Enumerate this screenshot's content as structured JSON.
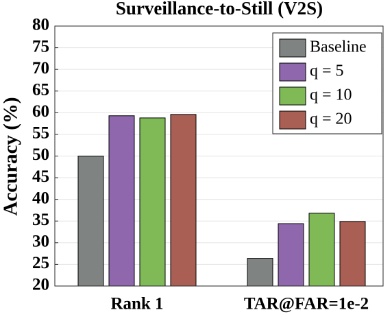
{
  "chart_data": {
    "type": "bar",
    "title": "Surveillance-to-Still (V2S)",
    "y_label": "Accuracy (%)",
    "categories": [
      "Rank 1",
      "TAR@FAR=1e-2"
    ],
    "series": [
      {
        "name": "Baseline",
        "color": "#7f8483",
        "values": [
          50,
          26.4
        ]
      },
      {
        "name": "q = 5",
        "color": "#8e67ad",
        "values": [
          59.3,
          34.4
        ]
      },
      {
        "name": "q = 10",
        "color": "#7fba56",
        "values": [
          58.8,
          36.8
        ]
      },
      {
        "name": "q = 20",
        "color": "#a95f53",
        "values": [
          59.6,
          34.9
        ]
      }
    ],
    "ylim": [
      20,
      80
    ],
    "yticks": [
      20,
      25,
      30,
      35,
      40,
      45,
      50,
      55,
      60,
      65,
      70,
      75,
      80
    ],
    "grid": true,
    "legend": "top-right"
  }
}
